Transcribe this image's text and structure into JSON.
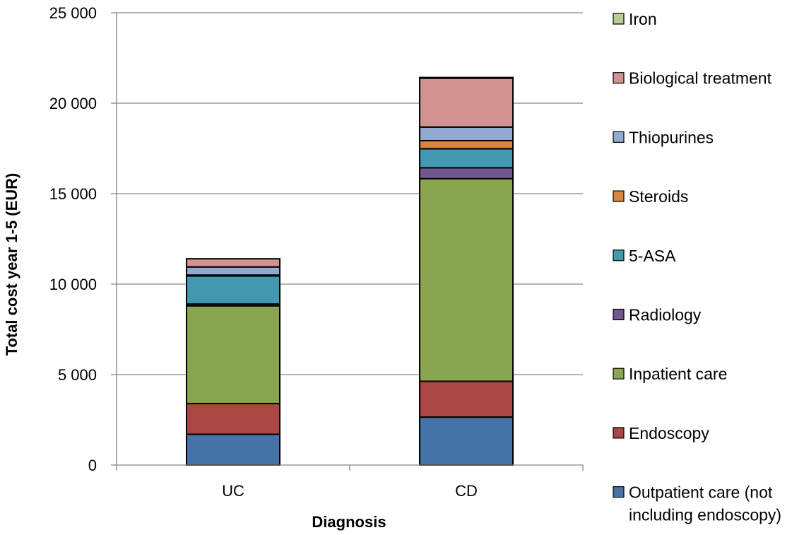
{
  "chart_data": {
    "type": "bar",
    "stacked": true,
    "categories": [
      "UC",
      "CD"
    ],
    "xlabel": "Diagnosis",
    "ylabel": "Total cost year 1-5 (EUR)",
    "ylim": [
      0,
      25000
    ],
    "yticks": [
      0,
      5000,
      10000,
      15000,
      20000,
      25000
    ],
    "ytick_labels": [
      "0",
      "5 000",
      "10 000",
      "15 000",
      "20 000",
      "25 000"
    ],
    "grid": true,
    "legend_position": "right",
    "series": [
      {
        "name": "Outpatient care (not including endoscopy)",
        "legend_lines": [
          "Outpatient care (not",
          "including endoscopy)"
        ],
        "color": "#4572A7",
        "values": [
          1700,
          2650
        ]
      },
      {
        "name": "Endoscopy",
        "legend_lines": [
          "Endoscopy"
        ],
        "color": "#AA4643",
        "values": [
          1700,
          1980
        ]
      },
      {
        "name": "Inpatient care",
        "legend_lines": [
          "Inpatient care"
        ],
        "color": "#89A54E",
        "values": [
          5400,
          11200
        ]
      },
      {
        "name": "Radiology",
        "legend_lines": [
          "Radiology"
        ],
        "color": "#71588F",
        "values": [
          100,
          600
        ]
      },
      {
        "name": "5-ASA",
        "legend_lines": [
          "5-ASA"
        ],
        "color": "#4198AF",
        "values": [
          1550,
          1050
        ]
      },
      {
        "name": "Steroids",
        "legend_lines": [
          "Steroids"
        ],
        "color": "#DB843D",
        "values": [
          50,
          450
        ]
      },
      {
        "name": "Thiopurines",
        "legend_lines": [
          "Thiopurines"
        ],
        "color": "#93A9CF",
        "values": [
          450,
          750
        ]
      },
      {
        "name": "Biological treatment",
        "legend_lines": [
          "Biological treatment"
        ],
        "color": "#D19392",
        "values": [
          450,
          2700
        ]
      },
      {
        "name": "Iron",
        "legend_lines": [
          "Iron"
        ],
        "color": "#B9CD96",
        "values": [
          0,
          40
        ]
      }
    ]
  }
}
